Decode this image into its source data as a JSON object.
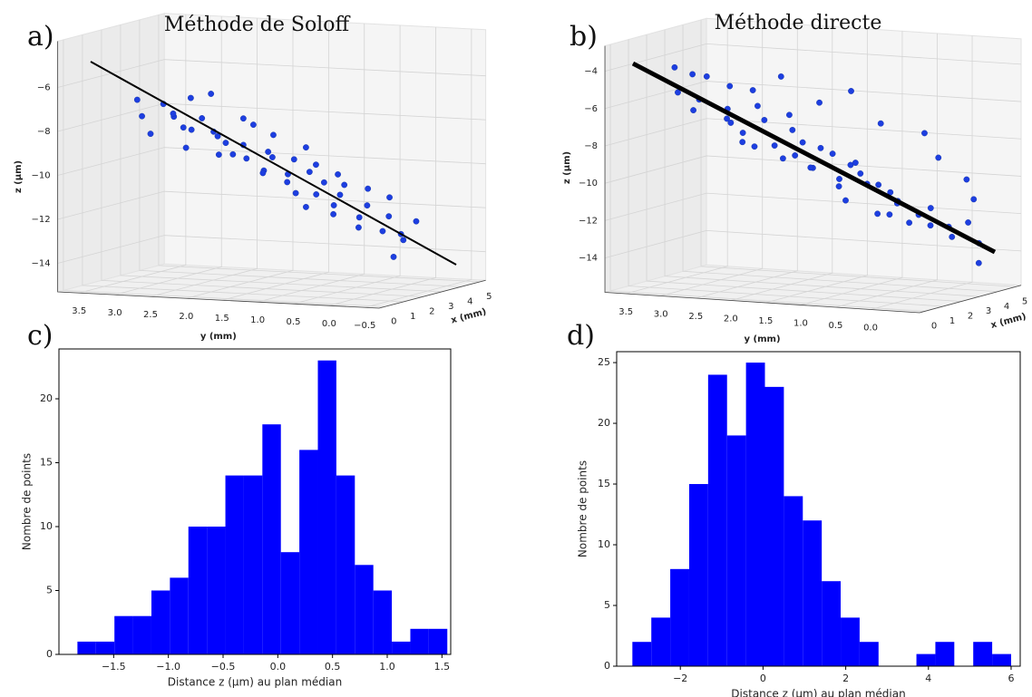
{
  "chart_data": [
    {
      "type": "scatter3d",
      "panel_label": "a)",
      "title": "Méthode de Soloff",
      "xlabel": "x (mm)",
      "ylabel": "y (mm)",
      "zlabel": "z (µm)",
      "xlim": [
        -0.3,
        5.3
      ],
      "ylim": [
        -0.7,
        3.8
      ],
      "zlim": [
        -15.3,
        -3.9
      ],
      "xticks": [
        0,
        1,
        2,
        3,
        4,
        5
      ],
      "yticks": [
        3.5,
        {
          "value": 3,
          "label": "3.0"
        },
        2.5,
        {
          "value": 2,
          "label": "2.0"
        },
        1.5,
        {
          "value": 1,
          "label": "1.0"
        },
        0.5,
        {
          "value": 0,
          "label": "0.0"
        },
        {
          "value": -0.5,
          "label": "−0.5"
        }
      ],
      "zticks": [
        {
          "value": -6,
          "label": "−6"
        },
        {
          "value": -8,
          "label": "−8"
        },
        {
          "value": -10,
          "label": "−10"
        },
        {
          "value": -12,
          "label": "−12"
        },
        {
          "value": -14,
          "label": "−14"
        }
      ],
      "point_color": "#1d3ee0",
      "line_color": "#000000",
      "x": [
        2.0,
        3.0,
        1.5,
        2.8,
        3.5,
        1.2,
        2.2,
        4.0,
        2.6,
        1.8,
        3.2,
        2.4,
        4.2,
        1.0,
        2.9,
        2.1,
        3.6,
        1.6,
        2.7,
        3.9,
        2.3,
        1.4,
        3.1,
        2.5,
        4.3,
        1.9,
        3.3,
        2.6,
        1.1,
        3.7,
        2.0,
        2.8,
        4.1,
        1.7,
        3.0,
        2.4,
        3.5,
        1.3,
        2.9,
        2.2,
        3.8,
        1.8,
        3.2,
        2.6,
        4.0,
        2.0,
        3.4,
        2.7,
        3.6,
        2.9,
        3.9,
        3.1
      ],
      "y": [
        3.3,
        3.2,
        3.1,
        3.0,
        2.95,
        2.9,
        2.85,
        2.8,
        2.7,
        2.6,
        2.55,
        2.5,
        2.4,
        2.35,
        2.3,
        2.2,
        2.1,
        2.05,
        2.0,
        1.9,
        1.85,
        1.8,
        1.7,
        1.6,
        1.55,
        1.5,
        1.45,
        1.35,
        1.3,
        1.25,
        1.2,
        1.1,
        1.05,
        1.0,
        0.95,
        0.9,
        0.8,
        0.75,
        0.7,
        0.6,
        0.55,
        0.5,
        0.4,
        0.35,
        0.3,
        0.2,
        0.15,
        0.05,
        0.0,
        -0.05,
        -0.1,
        -0.1
      ],
      "z": [
        -7.0,
        -7.4,
        -7.6,
        -7.9,
        -7.2,
        -8.3,
        -7.6,
        -7.1,
        -8.4,
        -8.1,
        -8.6,
        -7.8,
        -8.2,
        -8.8,
        -9.0,
        -8.5,
        -8.3,
        -9.2,
        -9.0,
        -8.8,
        -9.5,
        -9.1,
        -9.6,
        -9.2,
        -9.4,
        -9.9,
        -9.7,
        -10.2,
        -9.8,
        -10.0,
        -10.4,
        -10.1,
        -10.5,
        -10.8,
        -10.6,
        -11.0,
        -10.8,
        -11.3,
        -11.1,
        -11.4,
        -11.0,
        -11.7,
        -11.6,
        -12.0,
        -11.4,
        -12.3,
        -12.1,
        -12.6,
        -13.2,
        -13.8,
        -12.4,
        -12.8
      ],
      "fit_line": {
        "x": [
          2.5,
          2.5
        ],
        "y": [
          4.085,
          -1.033
        ],
        "z": [
          -5.51,
          -13.9
        ]
      }
    },
    {
      "type": "scatter3d",
      "panel_label": "b)",
      "title": "Méthode directe",
      "xlabel": "x (mm)",
      "ylabel": "y (mm)",
      "zlabel": "z (µm)",
      "xlim": [
        -0.3,
        5.3
      ],
      "ylim": [
        -0.7,
        3.8
      ],
      "zlim": [
        -15.84,
        -2.64
      ],
      "xticks": [
        0,
        1,
        2,
        3,
        4,
        5
      ],
      "yticks": [
        3.5,
        {
          "value": 3,
          "label": "3.0"
        },
        2.5,
        {
          "value": 2,
          "label": "2.0"
        },
        1.5,
        {
          "value": 1,
          "label": "1.0"
        },
        0.5,
        {
          "value": 0,
          "label": "0.0"
        }
      ],
      "zticks": [
        {
          "value": -4,
          "label": "−4"
        },
        {
          "value": -6,
          "label": "−6"
        },
        {
          "value": -8,
          "label": "−8"
        },
        {
          "value": -10,
          "label": "−10"
        },
        {
          "value": -12,
          "label": "−12"
        },
        {
          "value": -14,
          "label": "−14"
        }
      ],
      "point_color": "#1d3ee0",
      "line_color": "#000000",
      "x": [
        2.0,
        2.6,
        1.6,
        3.0,
        2.2,
        3.5,
        1.3,
        2.8,
        4.0,
        2.4,
        1.8,
        3.3,
        4.4,
        2.1,
        2.9,
        1.5,
        3.7,
        2.5,
        1.2,
        3.1,
        4.2,
        2.0,
        2.7,
        3.5,
        1.7,
        4.6,
        2.3,
        3.0,
        3.8,
        1.4,
        2.6,
        3.3,
        4.5,
        2.0,
        2.8,
        3.6,
        1.6,
        2.4,
        3.9,
        3.1,
        2.2,
        4.6,
        2.9,
        3.7,
        1.9,
        4.4,
        2.6,
        3.4,
        4.2,
        3.0,
        4.8,
        3.8,
        4.5,
        4.9,
        4.7,
        5.0
      ],
      "y": [
        3.4,
        3.3,
        3.25,
        3.2,
        3.1,
        3.0,
        2.95,
        2.85,
        2.8,
        2.7,
        2.6,
        2.55,
        2.5,
        2.45,
        2.35,
        2.3,
        2.2,
        2.1,
        2.05,
        2.0,
        1.9,
        1.85,
        1.75,
        1.7,
        1.6,
        1.55,
        1.5,
        1.4,
        1.35,
        1.3,
        1.2,
        1.15,
        1.1,
        1.05,
        0.95,
        0.9,
        0.85,
        0.75,
        0.7,
        0.6,
        0.55,
        0.5,
        0.45,
        0.35,
        0.3,
        0.25,
        0.2,
        0.1,
        0.05,
        0.0,
        -0.05,
        -0.1,
        -0.15,
        -0.2,
        -0.25,
        -0.1
      ],
      "z": [
        -4.3,
        -4.8,
        -5.5,
        -5.0,
        -6.0,
        -5.6,
        -6.3,
        -6.6,
        -5.9,
        -7.2,
        -6.8,
        -6.5,
        -5.2,
        -7.6,
        -7.1,
        -7.9,
        -7.0,
        -8.3,
        -8.0,
        -7.6,
        -6.4,
        -8.8,
        -8.1,
        -8.6,
        -8.5,
        -5.8,
        -9.3,
        -8.7,
        -9.5,
        -9.0,
        -9.9,
        -9.2,
        -7.4,
        -10.1,
        -9.6,
        -10.4,
        -10.7,
        -10.0,
        -11.3,
        -10.6,
        -11.5,
        -7.8,
        -11.1,
        -11.9,
        -11.4,
        -9.0,
        -12.0,
        -11.4,
        -12.6,
        -12.2,
        -10.2,
        -13.0,
        -12.4,
        -13.6,
        -14.6,
        -11.3
      ],
      "fit_line": {
        "x": [
          2.5,
          2.5
        ],
        "y": [
          4.125,
          -1.05
        ],
        "z": [
          -4.4,
          -13.24
        ]
      }
    },
    {
      "type": "histogram",
      "panel_label": "c)",
      "xlabel": "Distance z (µm) au plan médian",
      "ylabel": "Nombre de points",
      "color": "#0000ff",
      "bins": [
        -1.831,
        -1.662,
        -1.493,
        -1.324,
        -1.155,
        -0.986,
        -0.817,
        -0.648,
        -0.479,
        -0.31,
        -0.141,
        0.028,
        0.197,
        0.366,
        0.535,
        0.704,
        0.873,
        1.042,
        1.211,
        1.38,
        1.549
      ],
      "counts": [
        1,
        1,
        3,
        3,
        5,
        6,
        10,
        10,
        14,
        14,
        18,
        8,
        16,
        23,
        14,
        7,
        5,
        1,
        2,
        2
      ],
      "xlim": [
        -2.0,
        1.58
      ],
      "ylim": [
        0,
        23.9
      ],
      "xticks": [
        {
          "value": -1.5,
          "label": "−1.5"
        },
        {
          "value": -1,
          "label": "−1.0"
        },
        {
          "value": -0.5,
          "label": "−0.5"
        },
        {
          "value": 0,
          "label": "0.0"
        },
        0.5,
        {
          "value": 1,
          "label": "1.0"
        },
        1.5
      ],
      "yticks": [
        0,
        5,
        10,
        15,
        20
      ]
    },
    {
      "type": "histogram",
      "panel_label": "d)",
      "xlabel": "Distance z (µm) au plan médian",
      "ylabel": "Nombre de points",
      "color": "#0000ff",
      "bins": [
        -3.16,
        -2.702,
        -2.244,
        -1.786,
        -1.328,
        -0.87,
        -0.412,
        0.046,
        0.504,
        0.962,
        1.42,
        1.878,
        2.336,
        2.794,
        3.252,
        3.71,
        4.168,
        4.626,
        5.084,
        5.542,
        6.0
      ],
      "counts": [
        2,
        4,
        8,
        15,
        24,
        19,
        25,
        23,
        14,
        12,
        7,
        4,
        2,
        0,
        0,
        1,
        2,
        0,
        2,
        1
      ],
      "xlim": [
        -3.54,
        6.22
      ],
      "ylim": [
        0,
        25.9
      ],
      "xticks": [
        {
          "value": -2,
          "label": "−2"
        },
        0,
        2,
        4,
        6
      ],
      "yticks": [
        0,
        5,
        10,
        15,
        20,
        25
      ]
    }
  ]
}
